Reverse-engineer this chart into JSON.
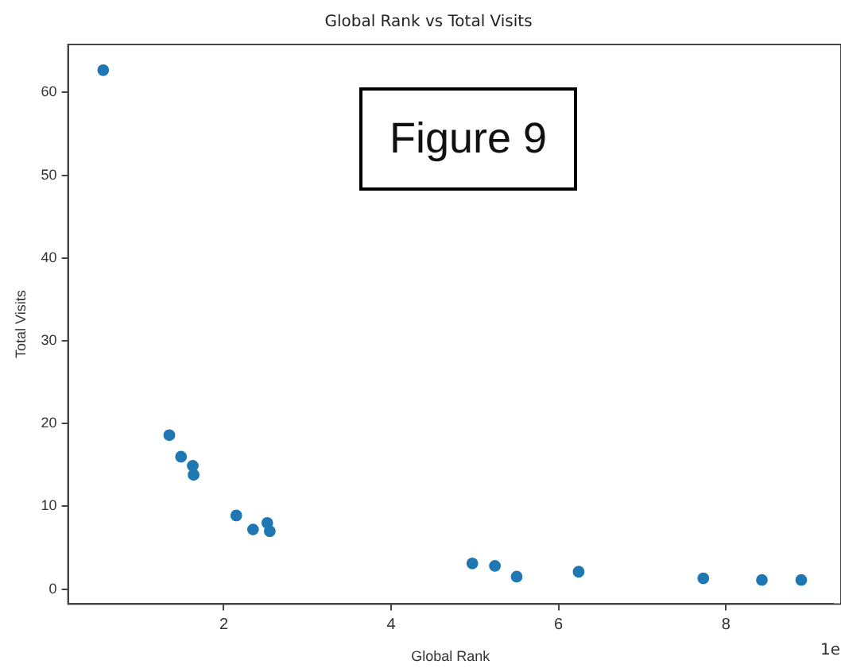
{
  "chart_data": {
    "type": "scatter",
    "title": "Global Rank vs Total Visits",
    "xlabel": "Global Rank",
    "ylabel": "Total Visits",
    "annotations": [
      "Figure 9",
      "1e"
    ],
    "marker": "circle",
    "grid": false,
    "legend": false,
    "xlim": [
      0.14,
      9.28
    ],
    "xticks": [
      2,
      4,
      6,
      8
    ],
    "ylim": [
      -1.8,
      65.8
    ],
    "yticks": [
      0,
      10,
      20,
      30,
      40,
      50,
      60
    ],
    "series": [
      {
        "color": "#1f77b4",
        "x": [
          0.56,
          1.35,
          1.49,
          1.63,
          1.64,
          2.15,
          2.35,
          2.52,
          2.55,
          4.97,
          5.24,
          5.5,
          6.24,
          7.73,
          8.43,
          8.9
        ],
        "values": [
          62.7,
          18.6,
          16.0,
          14.9,
          13.8,
          8.9,
          7.2,
          8.0,
          7.0,
          3.1,
          2.8,
          1.5,
          2.1,
          1.3,
          1.1,
          1.1
        ]
      }
    ]
  }
}
